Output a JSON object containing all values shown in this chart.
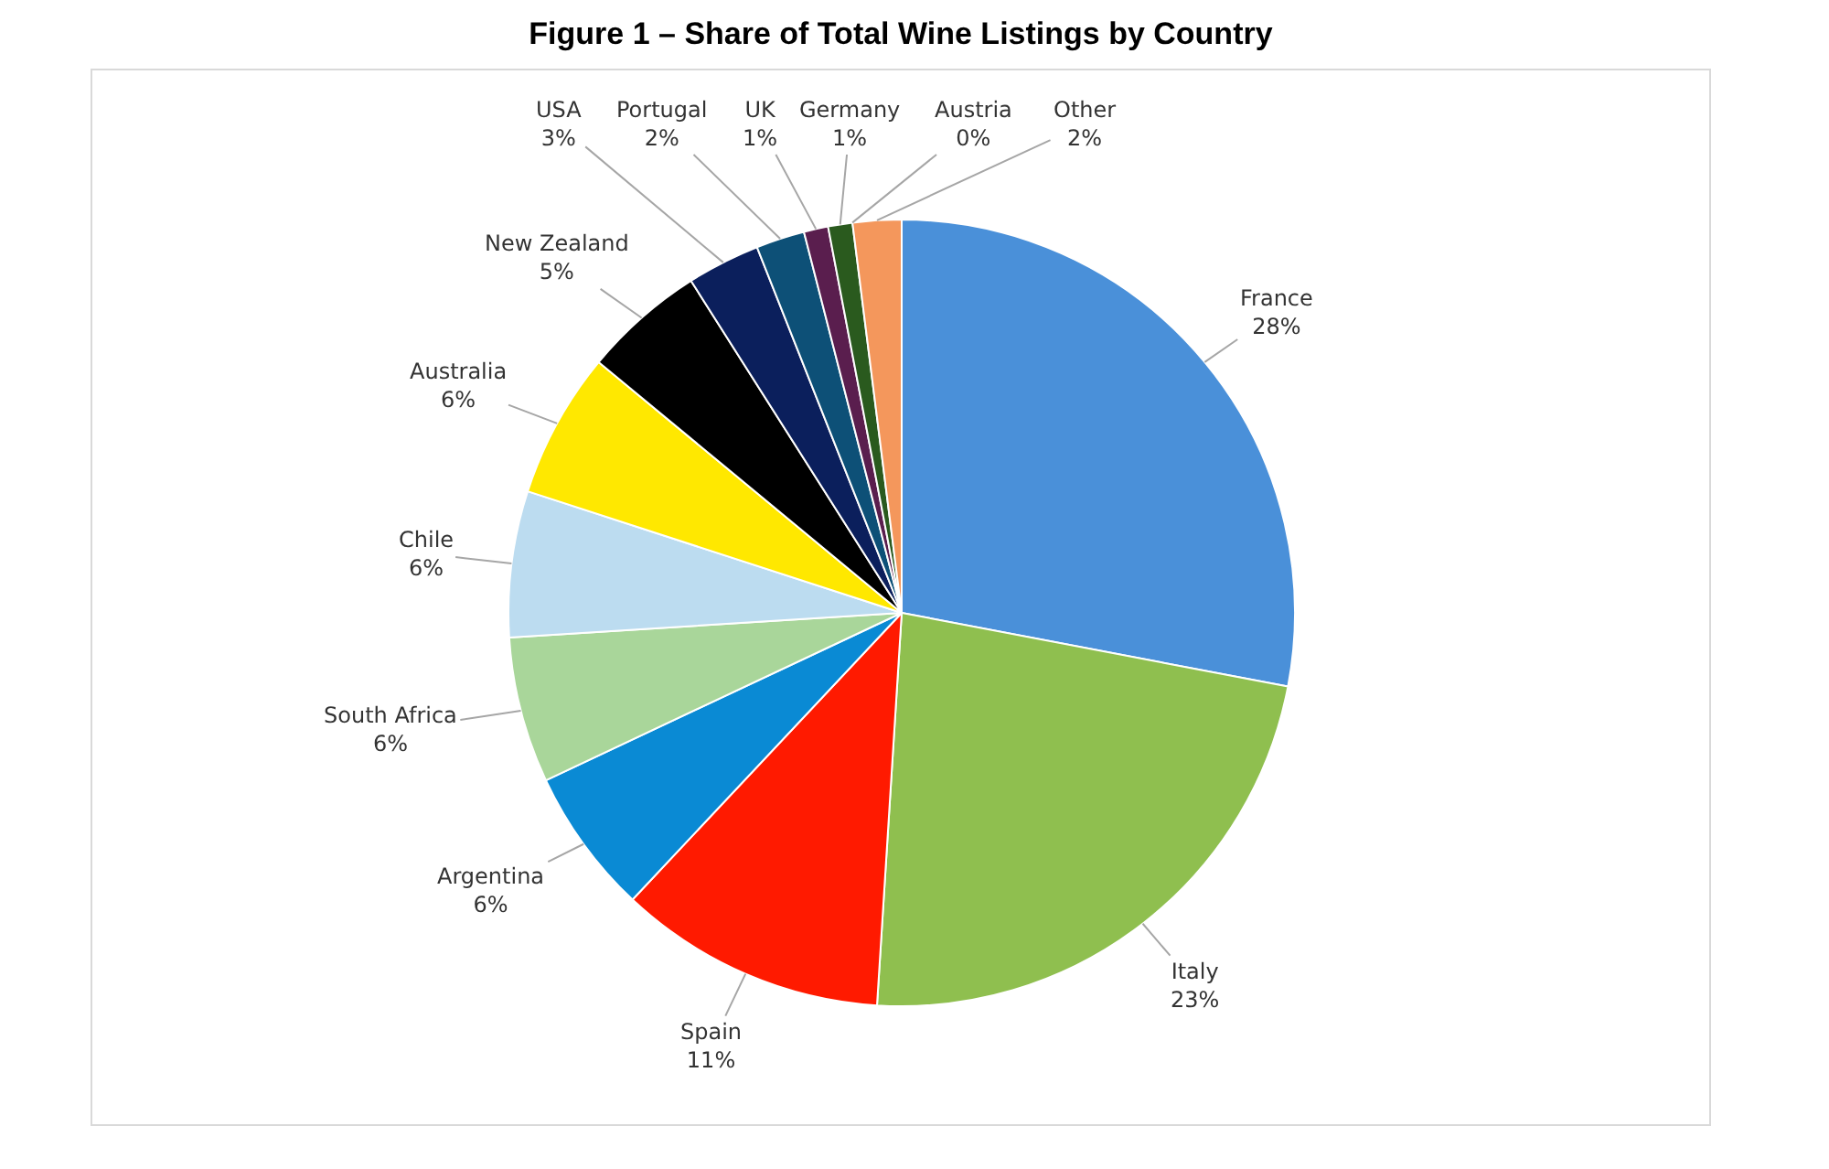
{
  "chart_data": {
    "type": "pie",
    "title": "Figure 1 – Share of Total Wine Listings by Country",
    "categories": [
      "France",
      "Italy",
      "Spain",
      "Argentina",
      "South Africa",
      "Chile",
      "Australia",
      "New Zealand",
      "USA",
      "Portugal",
      "UK",
      "Germany",
      "Austria",
      "Other"
    ],
    "values": [
      28,
      23,
      11,
      6,
      6,
      6,
      6,
      5,
      3,
      2,
      1,
      1,
      0,
      2
    ],
    "value_labels": [
      "28%",
      "23%",
      "11%",
      "6%",
      "6%",
      "6%",
      "6%",
      "5%",
      "3%",
      "2%",
      "1%",
      "1%",
      "0%",
      "2%"
    ],
    "colors": [
      "#4a90d9",
      "#8fbf4f",
      "#ff1a00",
      "#0a8ad4",
      "#a9d69a",
      "#bcdcf0",
      "#ffe800",
      "#000000",
      "#0b1f5c",
      "#0d5077",
      "#5a1e4e",
      "#2a5a1e",
      "#1a8ad0",
      "#f4975c"
    ]
  }
}
